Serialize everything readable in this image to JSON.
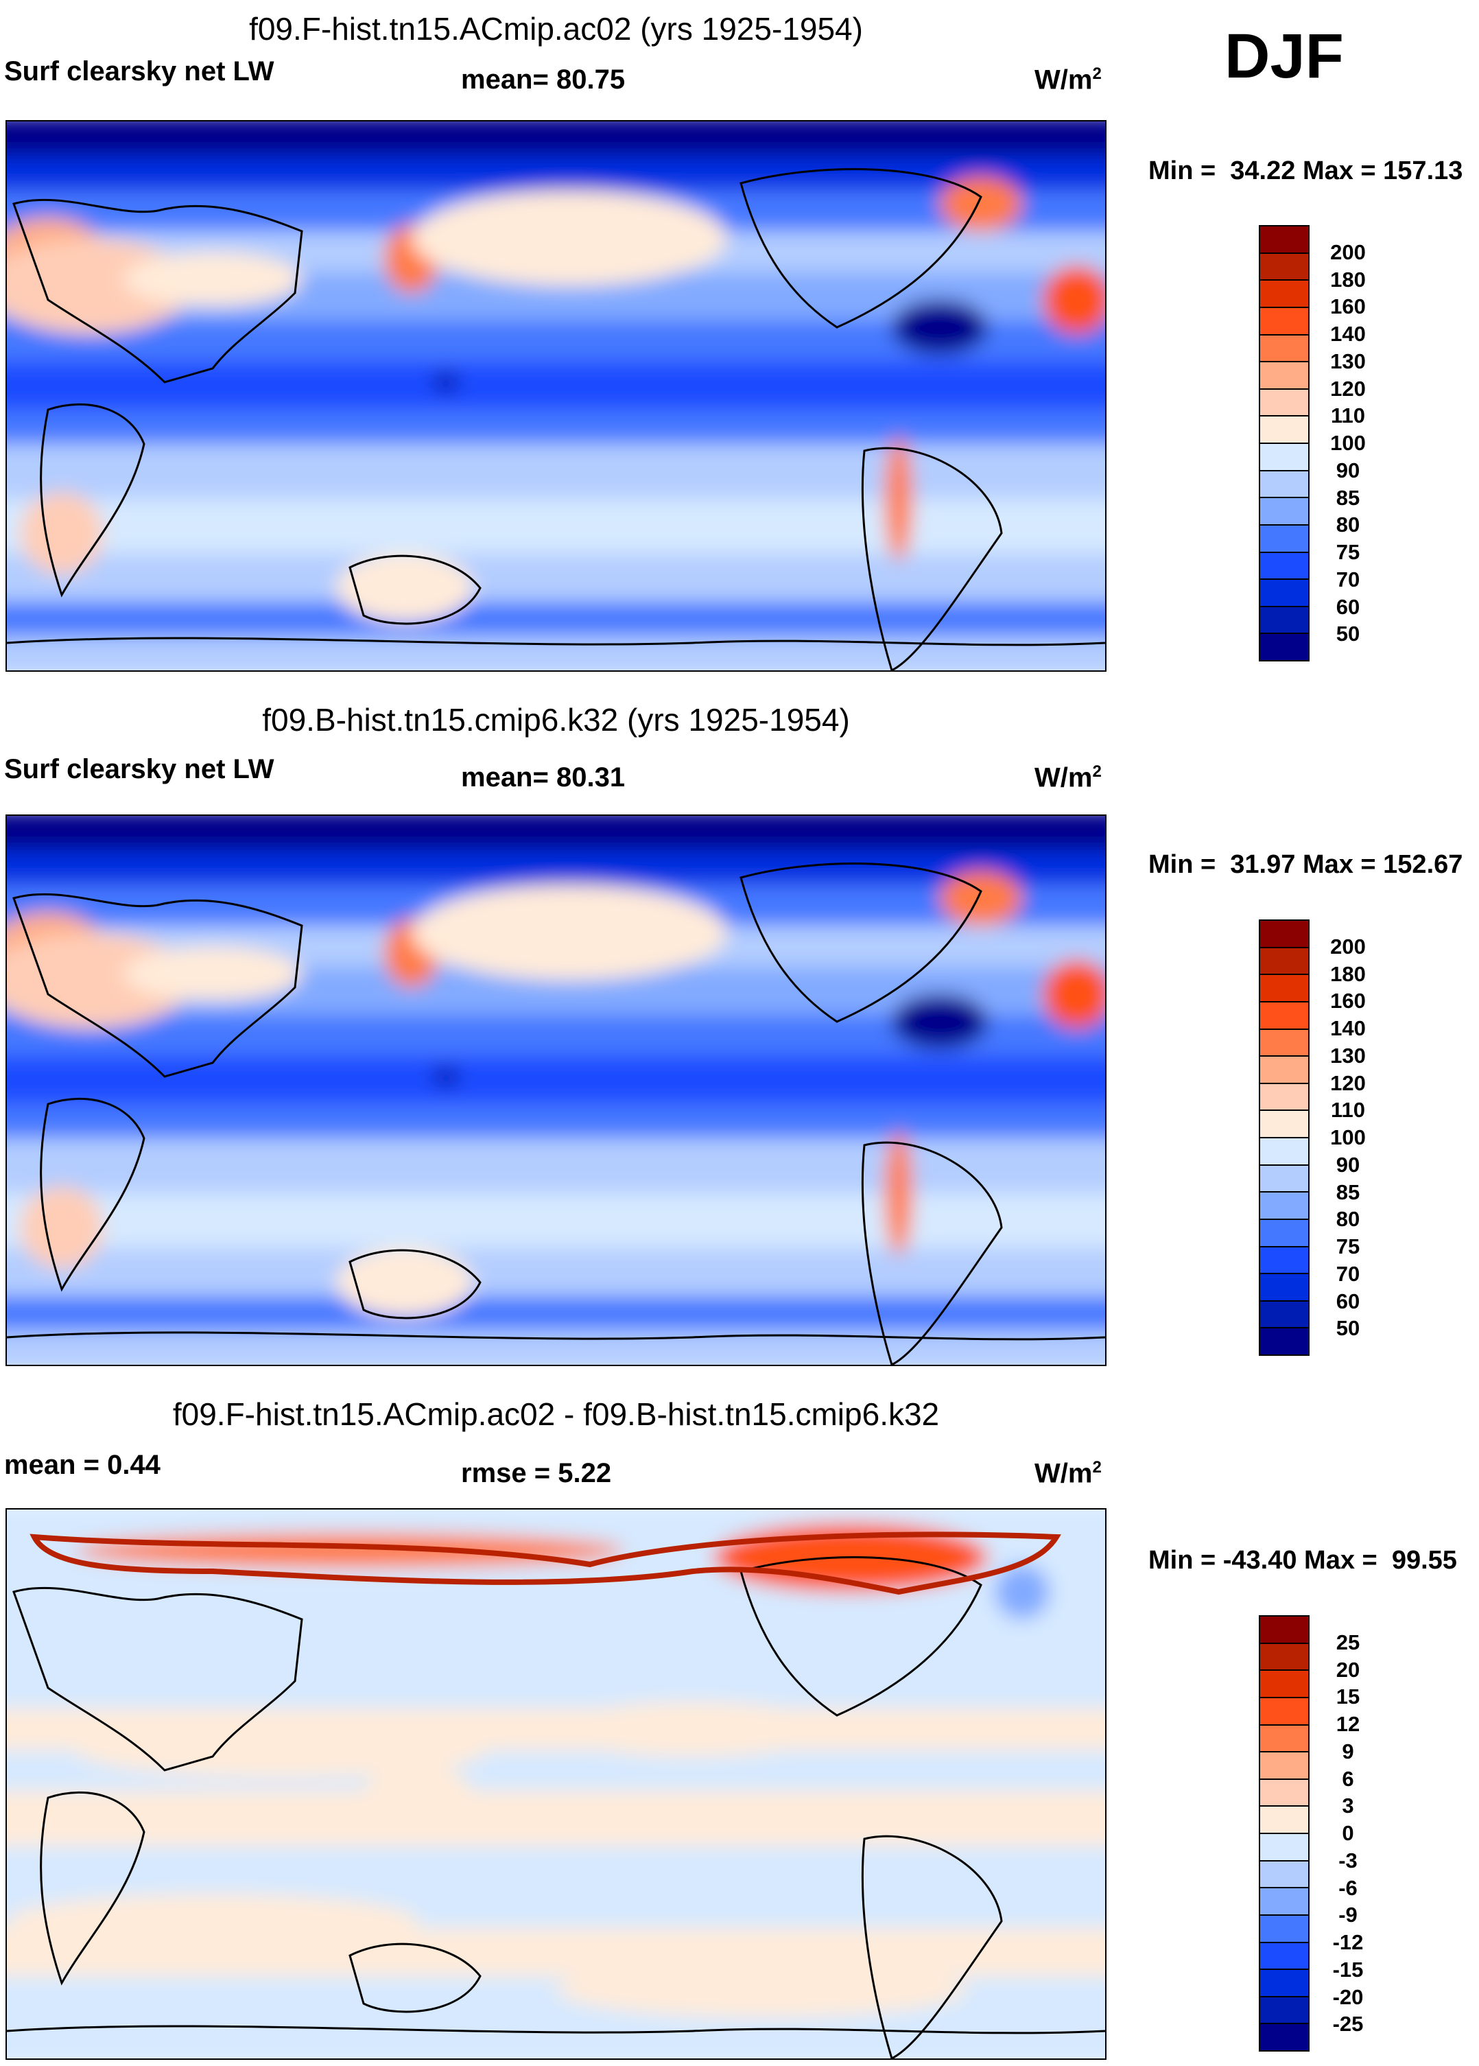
{
  "season": "DJF",
  "chart_data": [
    {
      "type": "heatmap",
      "title": "f09.F-hist.tn15.ACmip.ac02 (yrs 1925-1954)",
      "variable": "Surf clearsky net LW",
      "stat_label": "mean=",
      "stat_value": "80.75",
      "units": "W/m",
      "units_sup": "2",
      "minmax": "Min =  34.22 Max = 157.13",
      "levels": [
        "200",
        "180",
        "160",
        "140",
        "130",
        "120",
        "110",
        "100",
        "90",
        "85",
        "80",
        "75",
        "70",
        "60",
        "50"
      ],
      "kind": "abs"
    },
    {
      "type": "heatmap",
      "title": "f09.B-hist.tn15.cmip6.k32 (yrs 1925-1954)",
      "variable": "Surf clearsky net LW",
      "stat_label": "mean=",
      "stat_value": "80.31",
      "units": "W/m",
      "units_sup": "2",
      "minmax": "Min =  31.97 Max = 152.67",
      "levels": [
        "200",
        "180",
        "160",
        "140",
        "130",
        "120",
        "110",
        "100",
        "90",
        "85",
        "80",
        "75",
        "70",
        "60",
        "50"
      ],
      "kind": "abs"
    },
    {
      "type": "heatmap",
      "title": "f09.F-hist.tn15.ACmip.ac02 - f09.B-hist.tn15.cmip6.k32",
      "variable": "mean =   0.44",
      "stat_label": "rmse =",
      "stat_value": "5.22",
      "units": "W/m",
      "units_sup": "2",
      "minmax": "Min = -43.40 Max =  99.55",
      "levels": [
        "25",
        "20",
        "15",
        "12",
        "9",
        "6",
        "3",
        "0",
        "-3",
        "-6",
        "-9",
        "-12",
        "-15",
        "-20",
        "-25"
      ],
      "kind": "diff"
    }
  ],
  "colors": [
    "#8b0000",
    "#b82200",
    "#e23200",
    "#ff5119",
    "#ff7b47",
    "#ffad87",
    "#ffcdb6",
    "#ffebd9",
    "#d6e9ff",
    "#b3cdff",
    "#82aaff",
    "#4478ff",
    "#1c4cff",
    "#002fe0",
    "#001db3",
    "#00008b"
  ]
}
